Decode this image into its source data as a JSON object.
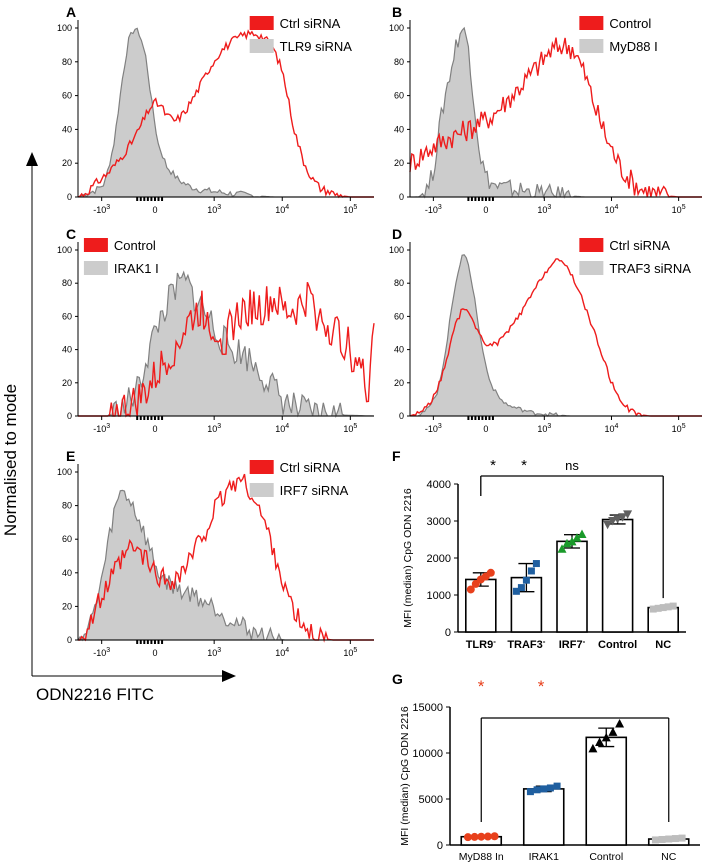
{
  "colors": {
    "red": "#ee1c1c",
    "gray": "#cccccc",
    "grayline": "#808080",
    "blue": "#1f5fa0",
    "green": "#1a9a2a",
    "orange": "#e8401c",
    "darkgray": "#606060",
    "lightgray": "#bdbdbd"
  },
  "figure": {
    "ylabel": "Normalised to mode",
    "xlabel": "ODN2216 FITC"
  },
  "chart_data": [
    {
      "id": "A",
      "type": "area",
      "title": "A",
      "legend": [
        "Ctrl siRNA",
        "TLR9 siRNA"
      ],
      "yticks": [
        "100",
        "80",
        "60",
        "40",
        "20",
        "0"
      ],
      "xticks": [
        "-10",
        "0",
        "10",
        "10",
        "10"
      ],
      "xtick_exps": [
        "3",
        "",
        "3",
        "4",
        "5"
      ],
      "ylim": [
        0,
        100
      ],
      "series": [
        {
          "name": "Ctrl siRNA",
          "x": [
            0,
            0.03,
            0.06,
            0.1,
            0.14,
            0.18,
            0.2,
            0.22,
            0.24,
            0.26,
            0.28,
            0.3,
            0.33,
            0.36,
            0.4,
            0.44,
            0.48,
            0.52,
            0.56,
            0.6,
            0.63,
            0.66,
            0.69,
            0.71,
            0.73,
            0.76,
            0.79,
            0.82,
            0.85,
            0.88,
            0.92,
            0.96,
            1.0
          ],
          "y": [
            0,
            3,
            8,
            14,
            22,
            32,
            38,
            45,
            52,
            56,
            54,
            48,
            45,
            50,
            62,
            75,
            86,
            92,
            96,
            97,
            94,
            88,
            75,
            58,
            40,
            22,
            11,
            5,
            3,
            1,
            0,
            0,
            0
          ]
        },
        {
          "name": "TLR9 siRNA",
          "x": [
            0,
            0.03,
            0.06,
            0.09,
            0.12,
            0.15,
            0.17,
            0.19,
            0.21,
            0.23,
            0.25,
            0.27,
            0.3,
            0.34,
            0.38,
            0.42,
            0.47,
            0.52,
            0.58,
            0.66,
            0.75,
            1.0
          ],
          "y": [
            0,
            2,
            4,
            8,
            30,
            70,
            92,
            100,
            96,
            82,
            55,
            32,
            18,
            10,
            6,
            4,
            3,
            2,
            1,
            0,
            0,
            0
          ]
        }
      ]
    },
    {
      "id": "B",
      "type": "area",
      "title": "B",
      "legend": [
        "Control",
        "MyD88 I"
      ],
      "yticks": [
        "100",
        "80",
        "60",
        "40",
        "20",
        "0"
      ],
      "xticks": [
        "-10",
        "0",
        "10",
        "10",
        "10"
      ],
      "xtick_exps": [
        "3",
        "",
        "3",
        "4",
        "5"
      ],
      "ylim": [
        0,
        100
      ],
      "series": [
        {
          "name": "Control",
          "x": [
            0,
            0.04,
            0.08,
            0.12,
            0.16,
            0.2,
            0.24,
            0.28,
            0.32,
            0.36,
            0.4,
            0.44,
            0.48,
            0.52,
            0.56,
            0.6,
            0.64,
            0.68,
            0.72,
            0.76,
            0.8,
            0.86,
            0.92,
            1.0
          ],
          "y": [
            20,
            25,
            30,
            34,
            37,
            40,
            44,
            48,
            55,
            62,
            70,
            78,
            86,
            90,
            88,
            72,
            50,
            32,
            18,
            9,
            4,
            1,
            0,
            0
          ]
        },
        {
          "name": "MyD88 I",
          "x": [
            0,
            0.02,
            0.04,
            0.06,
            0.08,
            0.1,
            0.12,
            0.14,
            0.16,
            0.18,
            0.2,
            0.22,
            0.24,
            0.26,
            0.28,
            0.3,
            0.34,
            0.38,
            0.42,
            0.46,
            0.52,
            0.6,
            1.0
          ],
          "y": [
            0,
            0,
            2,
            5,
            15,
            40,
            60,
            75,
            92,
            100,
            90,
            55,
            25,
            12,
            8,
            6,
            5,
            4,
            3,
            2,
            1,
            0,
            0
          ]
        }
      ]
    },
    {
      "id": "C",
      "type": "area",
      "title": "C",
      "legend": [
        "Control",
        "IRAK1 I"
      ],
      "yticks": [
        "100",
        "80",
        "60",
        "40",
        "20",
        "0"
      ],
      "xticks": [
        "-10",
        "0",
        "10",
        "10",
        "10"
      ],
      "xtick_exps": [
        "3",
        "",
        "3",
        "4",
        "5"
      ],
      "ylim": [
        0,
        100
      ],
      "series": [
        {
          "name": "Control",
          "x": [
            0,
            0.1,
            0.18,
            0.22,
            0.26,
            0.3,
            0.34,
            0.38,
            0.42,
            0.46,
            0.5,
            0.54,
            0.58,
            0.62,
            0.66,
            0.7,
            0.74,
            0.78,
            0.82,
            0.86,
            0.9,
            0.94,
            0.98,
            1.0
          ],
          "y": [
            0,
            0,
            5,
            12,
            22,
            35,
            45,
            58,
            65,
            52,
            48,
            60,
            66,
            64,
            70,
            62,
            64,
            72,
            58,
            52,
            45,
            35,
            15,
            60
          ]
        },
        {
          "name": "IRAK1 I",
          "x": [
            0,
            0.1,
            0.15,
            0.2,
            0.24,
            0.28,
            0.32,
            0.36,
            0.4,
            0.44,
            0.48,
            0.52,
            0.56,
            0.6,
            0.64,
            0.68,
            0.72,
            0.76,
            0.8,
            1.0
          ],
          "y": [
            0,
            0,
            4,
            15,
            40,
            60,
            74,
            82,
            70,
            60,
            48,
            40,
            38,
            30,
            22,
            12,
            6,
            3,
            1,
            0
          ]
        }
      ]
    },
    {
      "id": "D",
      "type": "area",
      "title": "D",
      "legend": [
        "Ctrl siRNA",
        "TRAF3 siRNA"
      ],
      "yticks": [
        "100",
        "80",
        "60",
        "40",
        "20",
        "0"
      ],
      "xticks": [
        "-10",
        "0",
        "10",
        "10",
        "10"
      ],
      "xtick_exps": [
        "3",
        "",
        "3",
        "4",
        "5"
      ],
      "ylim": [
        0,
        100
      ],
      "series": [
        {
          "name": "Ctrl siRNA",
          "x": [
            0,
            0.03,
            0.06,
            0.09,
            0.12,
            0.15,
            0.18,
            0.21,
            0.24,
            0.27,
            0.3,
            0.34,
            0.38,
            0.42,
            0.46,
            0.5,
            0.54,
            0.58,
            0.62,
            0.66,
            0.69,
            0.72,
            0.75,
            0.78,
            0.82,
            0.86,
            0.9,
            1.0
          ],
          "y": [
            0,
            2,
            6,
            14,
            30,
            52,
            65,
            60,
            48,
            42,
            44,
            52,
            62,
            74,
            86,
            94,
            90,
            75,
            56,
            36,
            20,
            10,
            4,
            1,
            0,
            0,
            0,
            0
          ]
        },
        {
          "name": "TRAF3 siRNA",
          "x": [
            0,
            0.03,
            0.06,
            0.09,
            0.12,
            0.14,
            0.16,
            0.18,
            0.2,
            0.22,
            0.24,
            0.26,
            0.28,
            0.31,
            0.34,
            0.38,
            0.42,
            0.48,
            0.55,
            1.0
          ],
          "y": [
            0,
            1,
            4,
            12,
            36,
            62,
            84,
            98,
            92,
            72,
            48,
            30,
            18,
            10,
            6,
            4,
            2,
            1,
            0,
            0
          ]
        }
      ]
    },
    {
      "id": "E",
      "type": "area",
      "title": "E",
      "legend": [
        "Ctrl siRNA",
        "IRF7 siRNA"
      ],
      "yticks": [
        "100",
        "80",
        "60",
        "40",
        "20",
        "0"
      ],
      "xticks": [
        "-10",
        "0",
        "10",
        "10",
        "10"
      ],
      "xtick_exps": [
        "3",
        "",
        "3",
        "4",
        "5"
      ],
      "ylim": [
        0,
        100
      ],
      "series": [
        {
          "name": "Ctrl siRNA",
          "x": [
            0,
            0.03,
            0.06,
            0.1,
            0.14,
            0.18,
            0.22,
            0.26,
            0.3,
            0.34,
            0.38,
            0.42,
            0.46,
            0.5,
            0.54,
            0.58,
            0.62,
            0.66,
            0.69,
            0.72,
            0.75,
            0.78,
            0.82,
            0.86,
            0.9,
            1.0
          ],
          "y": [
            0,
            6,
            18,
            32,
            45,
            55,
            50,
            40,
            35,
            38,
            48,
            62,
            76,
            88,
            96,
            90,
            74,
            55,
            36,
            20,
            10,
            4,
            1,
            0,
            0,
            0
          ]
        },
        {
          "name": "IRF7 siRNA",
          "x": [
            0,
            0.03,
            0.06,
            0.09,
            0.12,
            0.15,
            0.18,
            0.21,
            0.24,
            0.27,
            0.3,
            0.34,
            0.38,
            0.42,
            0.46,
            0.5,
            0.54,
            0.58,
            0.62,
            0.66,
            0.7,
            1.0
          ],
          "y": [
            0,
            5,
            20,
            45,
            75,
            90,
            82,
            70,
            55,
            40,
            35,
            30,
            28,
            24,
            20,
            14,
            10,
            6,
            3,
            1,
            0,
            0
          ]
        }
      ]
    },
    {
      "id": "F",
      "type": "bar",
      "title": "F",
      "ylabel": "MFI (median) CpG ODN 2216",
      "categories": [
        "TLR9",
        "TRAF3",
        "IRF7",
        "Control",
        "NC"
      ],
      "category_superscripts": [
        "-",
        "-",
        "-",
        "",
        ""
      ],
      "values": [
        1420,
        1470,
        2450,
        3040,
        660
      ],
      "errors": [
        180,
        380,
        180,
        120,
        40
      ],
      "points": [
        [
          1150,
          1300,
          1420,
          1500,
          1600
        ],
        [
          1100,
          1200,
          1400,
          1650,
          1850
        ],
        [
          2250,
          2400,
          2450,
          2550,
          2650
        ],
        [
          2900,
          3000,
          3050,
          3100,
          3180
        ],
        [
          620,
          640,
          660,
          680,
          700
        ]
      ],
      "point_colors": [
        "orange",
        "blue",
        "green",
        "darkgray",
        "lightgray"
      ],
      "point_markers": [
        "circle",
        "square",
        "triangle",
        "triangle-down",
        "square"
      ],
      "ylim": [
        0,
        4000
      ],
      "yticks": [
        "4000",
        "3000",
        "2000",
        "1000",
        "0"
      ],
      "significance": [
        "*",
        "*",
        "ns"
      ]
    },
    {
      "id": "G",
      "type": "bar",
      "title": "G",
      "ylabel": "MFI (median) CpG ODN 2216",
      "categories": [
        "MyD88 In",
        "IRAK1",
        "Control",
        "NC"
      ],
      "values": [
        900,
        6100,
        11700,
        650
      ],
      "errors": [
        50,
        300,
        1000,
        100
      ],
      "points": [
        [
          850,
          880,
          900,
          920,
          950
        ],
        [
          5800,
          6000,
          6100,
          6200,
          6400
        ],
        [
          10500,
          11200,
          11700,
          12300,
          13200
        ],
        [
          550,
          600,
          650,
          700,
          750
        ]
      ],
      "point_colors": [
        "orange",
        "blue",
        "black",
        "lightgray"
      ],
      "point_markers": [
        "circle",
        "square",
        "triangle",
        "square"
      ],
      "ylim": [
        0,
        15000
      ],
      "yticks": [
        "15000",
        "10000",
        "5000",
        "0"
      ],
      "significance": [
        "*",
        "*"
      ]
    }
  ]
}
